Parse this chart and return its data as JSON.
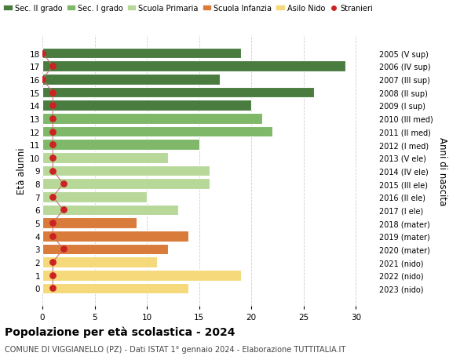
{
  "ages": [
    18,
    17,
    16,
    15,
    14,
    13,
    12,
    11,
    10,
    9,
    8,
    7,
    6,
    5,
    4,
    3,
    2,
    1,
    0
  ],
  "values": [
    19,
    29,
    17,
    26,
    20,
    21,
    22,
    15,
    12,
    16,
    16,
    10,
    13,
    9,
    14,
    12,
    11,
    19,
    14
  ],
  "stranieri_vals": [
    0,
    1,
    0,
    1,
    1,
    1,
    1,
    1,
    1,
    1,
    2,
    1,
    2,
    1,
    1,
    2,
    1,
    1,
    1
  ],
  "right_labels": [
    "2005 (V sup)",
    "2006 (IV sup)",
    "2007 (III sup)",
    "2008 (II sup)",
    "2009 (I sup)",
    "2010 (III med)",
    "2011 (II med)",
    "2012 (I med)",
    "2013 (V ele)",
    "2014 (IV ele)",
    "2015 (III ele)",
    "2016 (II ele)",
    "2017 (I ele)",
    "2018 (mater)",
    "2019 (mater)",
    "2020 (mater)",
    "2021 (nido)",
    "2022 (nido)",
    "2023 (nido)"
  ],
  "bar_colors": [
    "#4a7c40",
    "#4a7c40",
    "#4a7c40",
    "#4a7c40",
    "#4a7c40",
    "#7eb868",
    "#7eb868",
    "#7eb868",
    "#b8d89a",
    "#b8d89a",
    "#b8d89a",
    "#b8d89a",
    "#b8d89a",
    "#d97b3a",
    "#d97b3a",
    "#d97b3a",
    "#f5d97a",
    "#f5d97a",
    "#f5d97a"
  ],
  "legend_labels": [
    "Sec. II grado",
    "Sec. I grado",
    "Scuola Primaria",
    "Scuola Infanzia",
    "Asilo Nido",
    "Stranieri"
  ],
  "legend_colors": [
    "#4a7c40",
    "#7eb868",
    "#b8d89a",
    "#d97b3a",
    "#f5d97a",
    "#cc2222"
  ],
  "stranieri_color": "#cc2222",
  "stranieri_line_color": "#c47070",
  "ylabel_label": "Età alunni",
  "right_axis_label": "Anni di nascita",
  "title": "Popolazione per età scolastica - 2024",
  "subtitle": "COMUNE DI VIGGIANELLO (PZ) - Dati ISTAT 1° gennaio 2024 - Elaborazione TUTTITALIA.IT",
  "xlim": [
    0,
    32
  ],
  "background_color": "#ffffff",
  "grid_color": "#cccccc"
}
